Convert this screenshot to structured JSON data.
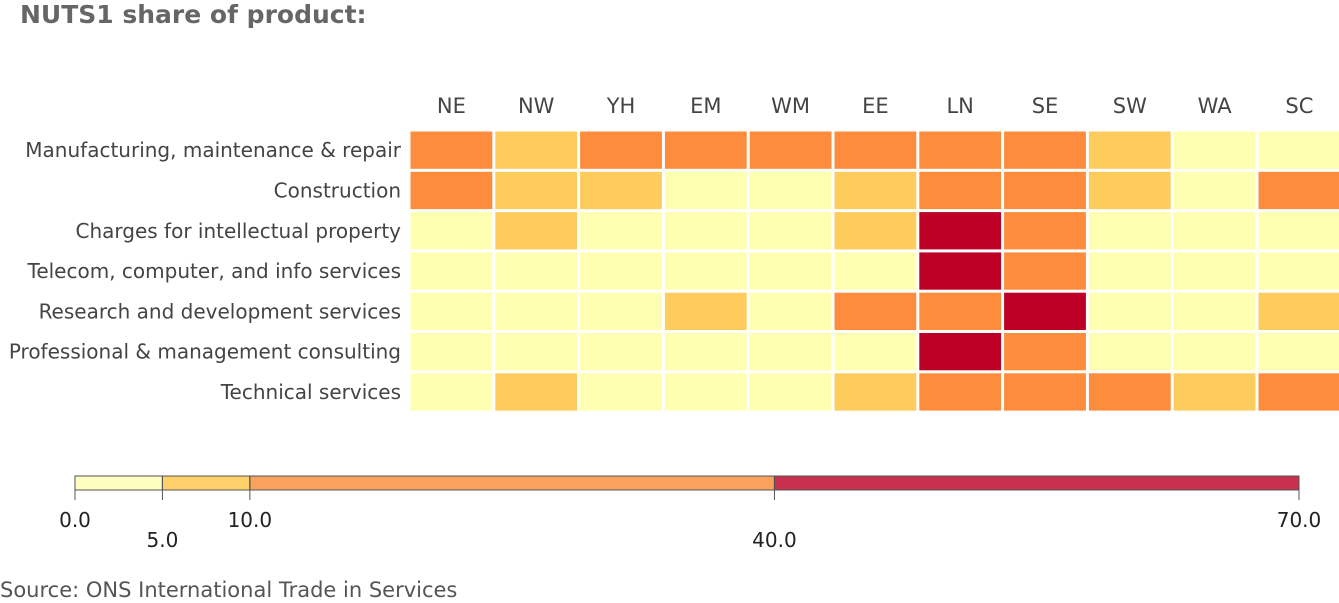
{
  "title": "NUTS1 share of product:",
  "source": "Source: ONS International Trade in Services",
  "chart_data": {
    "type": "heatmap",
    "title": "NUTS1 share of product:",
    "columns": [
      "NE",
      "NW",
      "YH",
      "EM",
      "WM",
      "EE",
      "LN",
      "SE",
      "SW",
      "WA",
      "SC"
    ],
    "rows": [
      "Manufacturing, maintenance & repair",
      "Construction",
      "Charges for intellectual property",
      "Telecom, computer, and info services",
      "Research and development services",
      "Professional & management consulting",
      "Technical services"
    ],
    "bin_labels": [
      "0 to 5",
      "5 to 10",
      "10 to 40",
      "40 to 70"
    ],
    "values": [
      [
        2,
        1,
        2,
        2,
        2,
        2,
        2,
        2,
        1,
        0,
        0
      ],
      [
        2,
        1,
        1,
        0,
        0,
        1,
        2,
        2,
        1,
        0,
        2
      ],
      [
        0,
        1,
        0,
        0,
        0,
        1,
        3,
        2,
        0,
        0,
        0
      ],
      [
        0,
        0,
        0,
        0,
        0,
        0,
        3,
        2,
        0,
        0,
        0
      ],
      [
        0,
        0,
        0,
        1,
        0,
        2,
        2,
        3,
        0,
        0,
        1
      ],
      [
        0,
        0,
        0,
        0,
        0,
        0,
        3,
        2,
        0,
        0,
        0
      ],
      [
        0,
        1,
        0,
        0,
        0,
        1,
        2,
        2,
        2,
        1,
        2
      ]
    ],
    "bin_colors": [
      "#ffffb2",
      "#fecc5c",
      "#fd8d3c",
      "#bd0026"
    ],
    "colorbar": {
      "ticks": [
        0,
        5,
        10,
        40,
        70
      ],
      "tick_labels": [
        "0.0",
        "5.0",
        "10.0",
        "40.0",
        "70.0"
      ],
      "segment_colors": [
        "#fefec0",
        "#fdd06a",
        "#f9a25e",
        "#c7304f"
      ],
      "range": [
        0,
        70
      ]
    }
  }
}
